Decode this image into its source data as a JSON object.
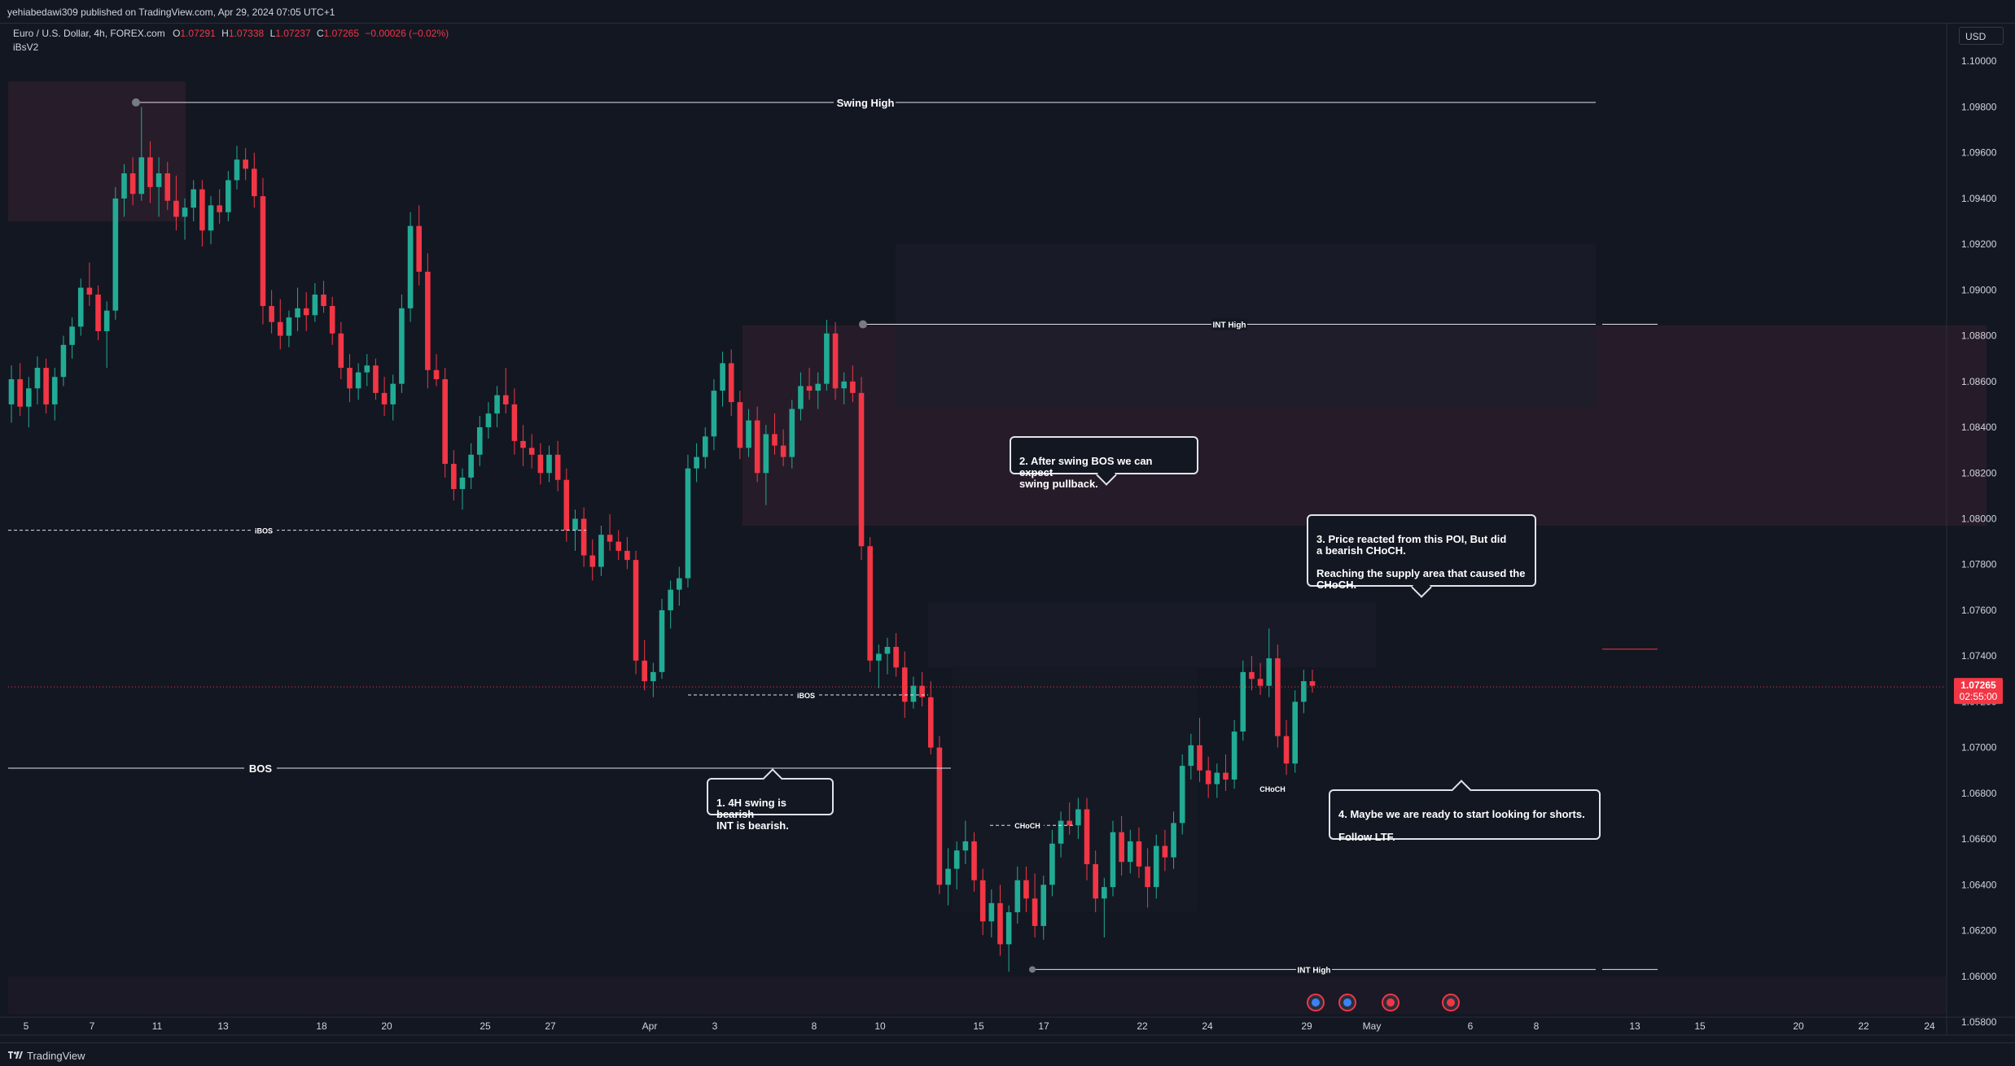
{
  "header": {
    "published": "yehiabedawi309 published on TradingView.com, Apr 29, 2024 07:05 UTC+1",
    "symbol": "Euro / U.S. Dollar, 4h, FOREX.com",
    "o_label": "O",
    "o_value": "1.07291",
    "h_label": "H",
    "h_value": "1.07338",
    "l_label": "L",
    "l_value": "1.07237",
    "c_label": "C",
    "c_value": "1.07265",
    "change": "−0.00026 (−0.02%)",
    "indicator": "iBsV2"
  },
  "currency_button": "USD",
  "footer": {
    "brand": "TradingView"
  },
  "colors": {
    "up": "#22ab94",
    "down": "#f23645",
    "background": "#131722",
    "text": "#d1d4dc",
    "price_tag": "#f23645",
    "zone": "#2a1d2a"
  },
  "price_tag": {
    "value": "1.07265",
    "countdown": "02:55:00"
  },
  "callouts": [
    {
      "id": "c1",
      "text": "1. 4H swing is bearish\nINT is bearish."
    },
    {
      "id": "c2",
      "text": "2. After swing BOS we can expect\nswing pullback."
    },
    {
      "id": "c3",
      "text": "3. Price reacted from this POI, But did\na bearish CHoCH.\n\nReaching the supply area that caused the\nCHoCH."
    },
    {
      "id": "c4",
      "text": "4. Maybe we are ready to start looking for shorts.\n\nFollow LTF."
    }
  ],
  "chart_data": {
    "type": "candlestick",
    "timeframe": "4h",
    "ylim": [
      1.0574,
      1.1016
    ],
    "y_ticks": [
      "1.10000",
      "1.09800",
      "1.09600",
      "1.09400",
      "1.09200",
      "1.09000",
      "1.08800",
      "1.08600",
      "1.08400",
      "1.08200",
      "1.08000",
      "1.07800",
      "1.07600",
      "1.07400",
      "1.07200",
      "1.07000",
      "1.06800",
      "1.06600",
      "1.06400",
      "1.06200",
      "1.06000",
      "1.05800"
    ],
    "x_ticks": [
      "5",
      "7",
      "11",
      "13",
      "18",
      "20",
      "25",
      "27",
      "Apr",
      "3",
      "8",
      "10",
      "15",
      "17",
      "22",
      "24",
      "29",
      "May",
      "6",
      "8",
      "13",
      "15",
      "20",
      "22",
      "24"
    ],
    "candles_ohlc": [
      [
        1.085,
        1.0867,
        1.0842,
        1.0861
      ],
      [
        1.0861,
        1.0868,
        1.0845,
        1.0849
      ],
      [
        1.0849,
        1.0862,
        1.084,
        1.0857
      ],
      [
        1.0857,
        1.0871,
        1.085,
        1.0866
      ],
      [
        1.0866,
        1.087,
        1.0846,
        1.085
      ],
      [
        1.085,
        1.0866,
        1.0843,
        1.0862
      ],
      [
        1.0862,
        1.088,
        1.0858,
        1.0876
      ],
      [
        1.0876,
        1.0888,
        1.087,
        1.0884
      ],
      [
        1.0884,
        1.0905,
        1.088,
        1.0901
      ],
      [
        1.0901,
        1.0912,
        1.0893,
        1.0898
      ],
      [
        1.0898,
        1.0902,
        1.0878,
        1.0882
      ],
      [
        1.0882,
        1.0895,
        1.0866,
        1.0891
      ],
      [
        1.0891,
        1.0945,
        1.0887,
        1.094
      ],
      [
        1.094,
        1.0955,
        1.0932,
        1.0951
      ],
      [
        1.0951,
        1.0958,
        1.0937,
        1.0942
      ],
      [
        1.0942,
        1.098,
        1.0939,
        1.0958
      ],
      [
        1.0958,
        1.0965,
        1.0938,
        1.0945
      ],
      [
        1.0945,
        1.0958,
        1.0932,
        1.0951
      ],
      [
        1.0951,
        1.0956,
        1.0935,
        1.0939
      ],
      [
        1.0939,
        1.095,
        1.0926,
        1.0932
      ],
      [
        1.0932,
        1.094,
        1.0922,
        1.0936
      ],
      [
        1.0936,
        1.0948,
        1.093,
        1.0944
      ],
      [
        1.0944,
        1.0948,
        1.0919,
        1.0926
      ],
      [
        1.0926,
        1.0941,
        1.092,
        1.0937
      ],
      [
        1.0937,
        1.0944,
        1.0929,
        1.0934
      ],
      [
        1.0934,
        1.0952,
        1.093,
        1.0948
      ],
      [
        1.0948,
        1.0963,
        1.0944,
        1.0957
      ],
      [
        1.0957,
        1.0962,
        1.0948,
        1.0953
      ],
      [
        1.0953,
        1.096,
        1.0936,
        1.0941
      ],
      [
        1.0941,
        1.0949,
        1.0885,
        1.0893
      ],
      [
        1.0893,
        1.09,
        1.0881,
        1.0886
      ],
      [
        1.0886,
        1.0896,
        1.0874,
        1.088
      ],
      [
        1.088,
        1.0891,
        1.0875,
        1.0888
      ],
      [
        1.0888,
        1.0901,
        1.0882,
        1.0892
      ],
      [
        1.0892,
        1.0899,
        1.0882,
        1.0889
      ],
      [
        1.0889,
        1.0903,
        1.0886,
        1.0898
      ],
      [
        1.0898,
        1.0904,
        1.089,
        1.0893
      ],
      [
        1.0893,
        1.0897,
        1.0876,
        1.0881
      ],
      [
        1.0881,
        1.0886,
        1.0861,
        1.0866
      ],
      [
        1.0866,
        1.0872,
        1.0851,
        1.0857
      ],
      [
        1.0857,
        1.0868,
        1.0852,
        1.0864
      ],
      [
        1.0864,
        1.0872,
        1.0858,
        1.0867
      ],
      [
        1.0867,
        1.087,
        1.0852,
        1.0855
      ],
      [
        1.0855,
        1.0862,
        1.0845,
        1.085
      ],
      [
        1.085,
        1.0863,
        1.0843,
        1.0859
      ],
      [
        1.0859,
        1.0898,
        1.0855,
        1.0892
      ],
      [
        1.0892,
        1.0934,
        1.0886,
        1.0928
      ],
      [
        1.0928,
        1.0937,
        1.0902,
        1.0908
      ],
      [
        1.0908,
        1.0916,
        1.0857,
        1.0865
      ],
      [
        1.0865,
        1.0872,
        1.0858,
        1.0861
      ],
      [
        1.0861,
        1.0866,
        1.0818,
        1.0824
      ],
      [
        1.0824,
        1.083,
        1.0808,
        1.0813
      ],
      [
        1.0813,
        1.0822,
        1.0804,
        1.0818
      ],
      [
        1.0818,
        1.0833,
        1.0813,
        1.0828
      ],
      [
        1.0828,
        1.0845,
        1.0823,
        1.084
      ],
      [
        1.084,
        1.0851,
        1.0835,
        1.0846
      ],
      [
        1.0846,
        1.0858,
        1.084,
        1.0854
      ],
      [
        1.0854,
        1.0866,
        1.0846,
        1.085
      ],
      [
        1.085,
        1.0857,
        1.0828,
        1.0834
      ],
      [
        1.0834,
        1.0841,
        1.0823,
        1.0831
      ],
      [
        1.0831,
        1.0837,
        1.0822,
        1.0828
      ],
      [
        1.0828,
        1.0833,
        1.0815,
        1.082
      ],
      [
        1.082,
        1.0832,
        1.0816,
        1.0828
      ],
      [
        1.0828,
        1.0834,
        1.0812,
        1.0817
      ],
      [
        1.0817,
        1.0822,
        1.079,
        1.0795
      ],
      [
        1.0795,
        1.0804,
        1.0786,
        1.08
      ],
      [
        1.08,
        1.0805,
        1.0779,
        1.0784
      ],
      [
        1.0784,
        1.0791,
        1.0773,
        1.0779
      ],
      [
        1.0779,
        1.0797,
        1.0775,
        1.0793
      ],
      [
        1.0793,
        1.0802,
        1.0786,
        1.079
      ],
      [
        1.079,
        1.0795,
        1.0782,
        1.0786
      ],
      [
        1.0786,
        1.0792,
        1.0778,
        1.0782
      ],
      [
        1.0782,
        1.0786,
        1.0732,
        1.0738
      ],
      [
        1.0738,
        1.0747,
        1.0725,
        1.0729
      ],
      [
        1.0729,
        1.0737,
        1.0722,
        1.0733
      ],
      [
        1.0733,
        1.0765,
        1.073,
        1.076
      ],
      [
        1.076,
        1.0773,
        1.0752,
        1.0769
      ],
      [
        1.0769,
        1.0779,
        1.0762,
        1.0774
      ],
      [
        1.0774,
        1.0828,
        1.077,
        1.0822
      ],
      [
        1.0822,
        1.0833,
        1.0816,
        1.0827
      ],
      [
        1.0827,
        1.084,
        1.0822,
        1.0836
      ],
      [
        1.0836,
        1.0861,
        1.083,
        1.0856
      ],
      [
        1.0856,
        1.0873,
        1.0849,
        1.0868
      ],
      [
        1.0868,
        1.0874,
        1.0845,
        1.0851
      ],
      [
        1.0851,
        1.0856,
        1.0826,
        1.0831
      ],
      [
        1.0831,
        1.0848,
        1.0827,
        1.0843
      ],
      [
        1.0843,
        1.0849,
        1.0816,
        1.082
      ],
      [
        1.082,
        1.0841,
        1.0806,
        1.0837
      ],
      [
        1.0837,
        1.0846,
        1.0828,
        1.0832
      ],
      [
        1.0832,
        1.0839,
        1.0823,
        1.0827
      ],
      [
        1.0827,
        1.0852,
        1.0822,
        1.0848
      ],
      [
        1.0848,
        1.0864,
        1.0843,
        1.0858
      ],
      [
        1.0858,
        1.0866,
        1.0852,
        1.0856
      ],
      [
        1.0856,
        1.0864,
        1.0848,
        1.0859
      ],
      [
        1.0859,
        1.0887,
        1.0856,
        1.0881
      ],
      [
        1.0881,
        1.0886,
        1.0852,
        1.0857
      ],
      [
        1.0857,
        1.0864,
        1.085,
        1.086
      ],
      [
        1.086,
        1.0867,
        1.0851,
        1.0855
      ],
      [
        1.0855,
        1.0862,
        1.0782,
        1.0788
      ],
      [
        1.0788,
        1.0792,
        1.0733,
        1.0738
      ],
      [
        1.0738,
        1.0745,
        1.0726,
        1.0741
      ],
      [
        1.0741,
        1.0748,
        1.0732,
        1.0744
      ],
      [
        1.0744,
        1.075,
        1.0731,
        1.0735
      ],
      [
        1.0735,
        1.0742,
        1.0713,
        1.072
      ],
      [
        1.072,
        1.0731,
        1.0717,
        1.0727
      ],
      [
        1.0727,
        1.0733,
        1.0718,
        1.0722
      ],
      [
        1.0722,
        1.0729,
        1.0697,
        1.07
      ],
      [
        1.07,
        1.0705,
        1.0636,
        1.064
      ],
      [
        1.064,
        1.0656,
        1.0631,
        1.0647
      ],
      [
        1.0647,
        1.0659,
        1.0638,
        1.0655
      ],
      [
        1.0655,
        1.0668,
        1.0649,
        1.0659
      ],
      [
        1.0659,
        1.0663,
        1.0637,
        1.0642
      ],
      [
        1.0642,
        1.0647,
        1.0618,
        1.0624
      ],
      [
        1.0624,
        1.0638,
        1.0617,
        1.0632
      ],
      [
        1.0632,
        1.064,
        1.0609,
        1.0614
      ],
      [
        1.0614,
        1.0631,
        1.0602,
        1.0628
      ],
      [
        1.0628,
        1.0648,
        1.0623,
        1.0642
      ],
      [
        1.0642,
        1.0648,
        1.0628,
        1.0634
      ],
      [
        1.0634,
        1.0645,
        1.0617,
        1.0622
      ],
      [
        1.0622,
        1.0644,
        1.0616,
        1.064
      ],
      [
        1.064,
        1.0664,
        1.0635,
        1.0658
      ],
      [
        1.0658,
        1.0672,
        1.0652,
        1.0668
      ],
      [
        1.0668,
        1.0676,
        1.0662,
        1.0666
      ],
      [
        1.0666,
        1.0678,
        1.066,
        1.0673
      ],
      [
        1.0673,
        1.0678,
        1.0642,
        1.0649
      ],
      [
        1.0649,
        1.0655,
        1.0628,
        1.0634
      ],
      [
        1.0634,
        1.0643,
        1.0617,
        1.0639
      ],
      [
        1.0639,
        1.0668,
        1.0635,
        1.0663
      ],
      [
        1.0663,
        1.067,
        1.0644,
        1.065
      ],
      [
        1.065,
        1.0664,
        1.0645,
        1.0659
      ],
      [
        1.0659,
        1.0665,
        1.0643,
        1.0648
      ],
      [
        1.0648,
        1.0656,
        1.063,
        1.0639
      ],
      [
        1.0639,
        1.0662,
        1.0634,
        1.0657
      ],
      [
        1.0657,
        1.0664,
        1.0646,
        1.0652
      ],
      [
        1.0652,
        1.0672,
        1.0647,
        1.0667
      ],
      [
        1.0667,
        1.0697,
        1.0662,
        1.0692
      ],
      [
        1.0692,
        1.0706,
        1.0686,
        1.0701
      ],
      [
        1.0701,
        1.0713,
        1.0685,
        1.069
      ],
      [
        1.069,
        1.0696,
        1.0678,
        1.0684
      ],
      [
        1.0684,
        1.0693,
        1.0678,
        1.0689
      ],
      [
        1.0689,
        1.0697,
        1.0681,
        1.0686
      ],
      [
        1.0686,
        1.0712,
        1.0682,
        1.0707
      ],
      [
        1.0707,
        1.0738,
        1.0703,
        1.0733
      ],
      [
        1.0733,
        1.074,
        1.0725,
        1.073
      ],
      [
        1.073,
        1.0737,
        1.0723,
        1.0727
      ],
      [
        1.0727,
        1.0752,
        1.0722,
        1.0739
      ],
      [
        1.0739,
        1.0745,
        1.07,
        1.0705
      ],
      [
        1.0705,
        1.0712,
        1.0688,
        1.0693
      ],
      [
        1.0693,
        1.0725,
        1.0689,
        1.072
      ],
      [
        1.072,
        1.0734,
        1.0715,
        1.0729
      ],
      [
        1.0729,
        1.0734,
        1.0724,
        1.0727
      ]
    ],
    "levels": [
      {
        "label": "Swing High",
        "value": 1.0982
      },
      {
        "label": "INT High",
        "value": 1.0885
      },
      {
        "label": "iBOS",
        "value": 1.0795
      },
      {
        "label": "iBOS",
        "value": 1.0723
      },
      {
        "label": "BOS",
        "value": 1.0691
      },
      {
        "label": "CHoCH",
        "value": 1.0666
      },
      {
        "label": "CHoCH",
        "value": 1.0682
      },
      {
        "label": "INT High",
        "value": 1.0603
      }
    ],
    "last_price": 1.07265
  }
}
